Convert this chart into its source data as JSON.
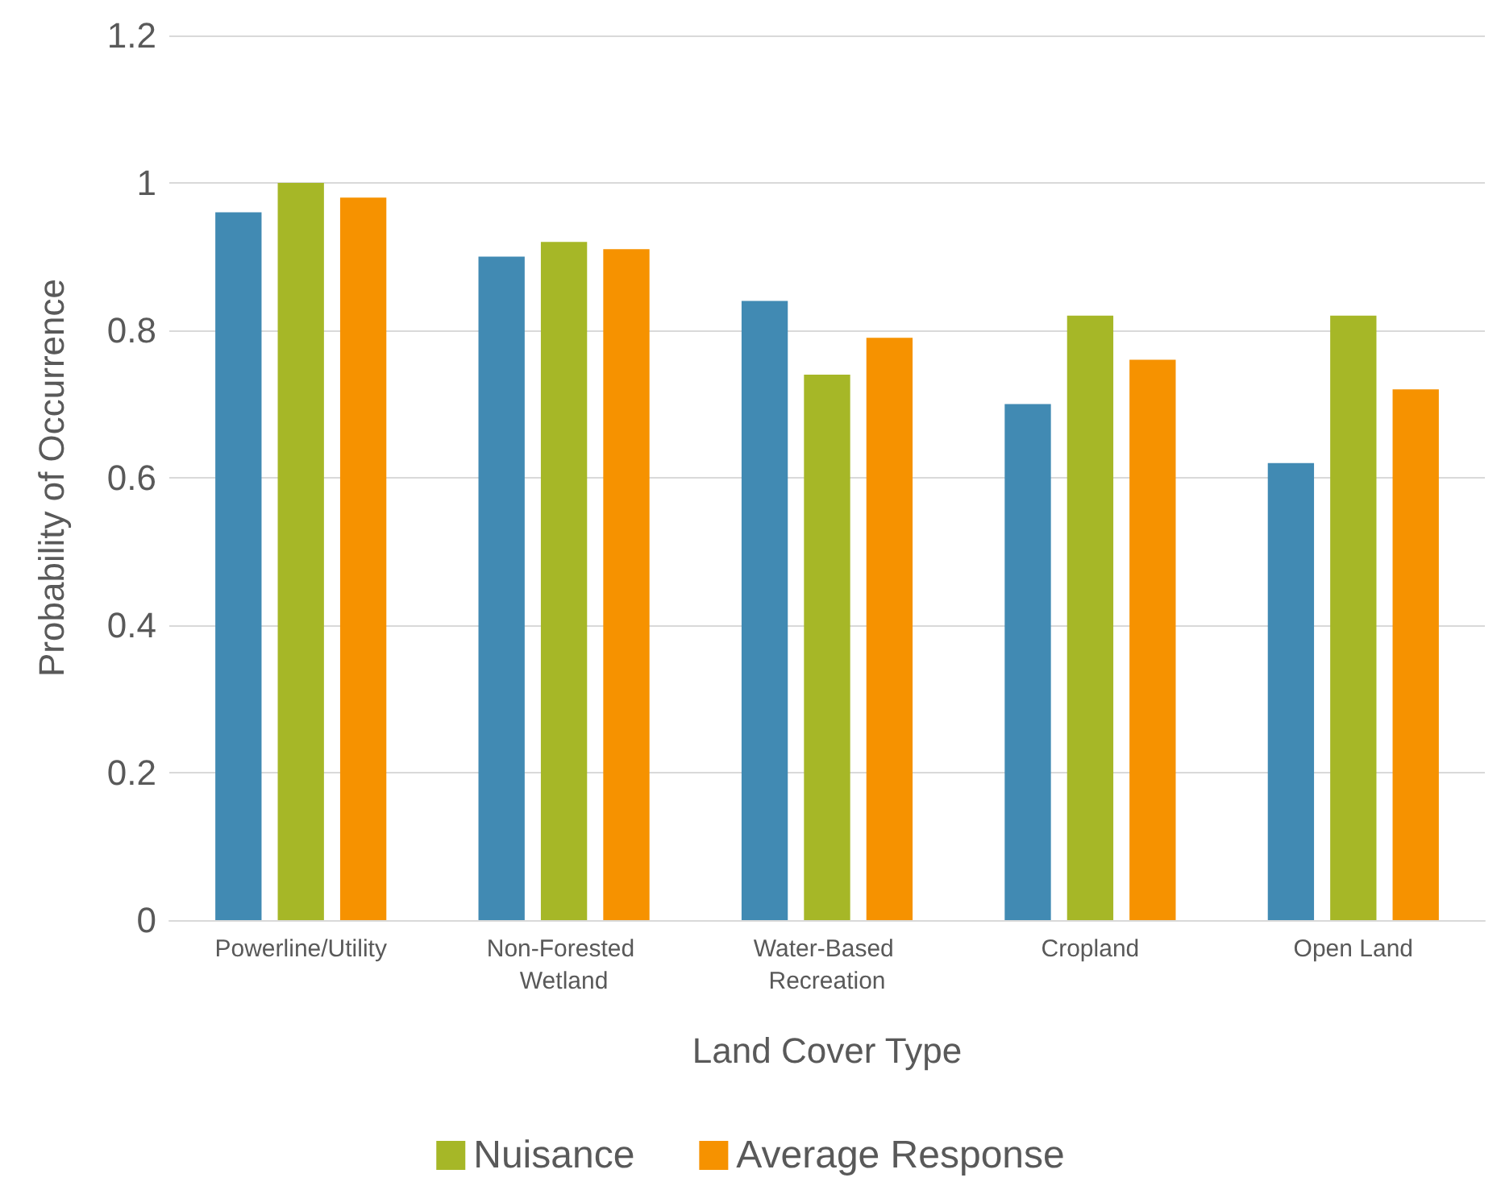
{
  "chart_data": {
    "type": "bar",
    "xlabel": "Land Cover Type",
    "ylabel": "Probability of Occurrence",
    "categories": [
      "Powerline/Utility",
      "Non-Forested Wetland",
      "Water-Based Recreation",
      "Cropland",
      "Open Land"
    ],
    "series": [
      {
        "color": "#418ab3",
        "values": [
          0.96,
          0.9,
          0.84,
          0.7,
          0.62
        ]
      },
      {
        "name": "Nuisance",
        "color": "#a6b727",
        "values": [
          1.0,
          0.92,
          0.74,
          0.82,
          0.82
        ]
      },
      {
        "name": "Average Response",
        "color": "#f69200",
        "values": [
          0.98,
          0.91,
          0.79,
          0.76,
          0.72
        ]
      }
    ],
    "ylim": [
      0,
      1.2
    ],
    "yticks": [
      0,
      0.2,
      0.4,
      0.6,
      0.8,
      1,
      1.2
    ],
    "grid": "y",
    "legend": "bottom"
  }
}
